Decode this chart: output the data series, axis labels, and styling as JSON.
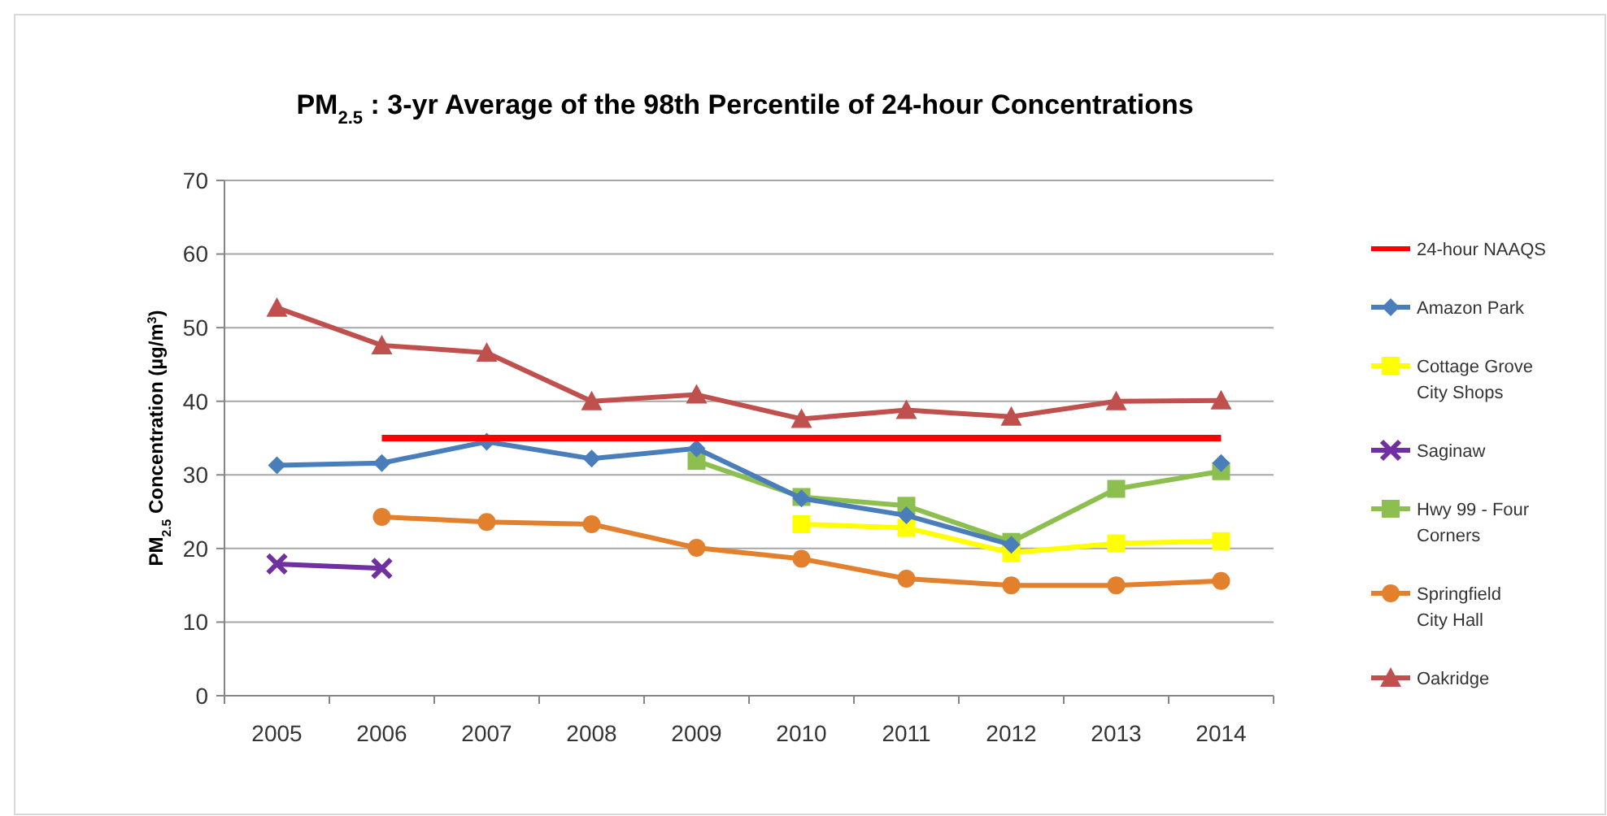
{
  "chart_data": {
    "type": "line",
    "title": "PM$_{2.5}$ : 3-yr Average of the 98th Percentile of 24-hour Concentrations",
    "ylabel": "PM$_{2.5}$ Concentration (µg/m$^{3}$)",
    "categories": [
      "2005",
      "2006",
      "2007",
      "2008",
      "2009",
      "2010",
      "2011",
      "2012",
      "2013",
      "2014"
    ],
    "ylim": [
      0,
      70
    ],
    "yticks": [
      0,
      10,
      20,
      30,
      40,
      50,
      60,
      70
    ],
    "grid": "y",
    "legend": "right",
    "series": [
      {
        "name": "24-hour NAAQS",
        "color": "#ff0000",
        "marker": "none",
        "values": [
          null,
          35,
          35,
          35,
          35,
          35,
          35,
          35,
          35,
          35
        ]
      },
      {
        "name": "Amazon Park",
        "color": "#4a7ebb",
        "marker": "diamond",
        "values": [
          31.3,
          31.6,
          34.5,
          32.2,
          33.6,
          26.8,
          24.5,
          20.5,
          null,
          31.6
        ]
      },
      {
        "name": "Cottage Grove City Shops",
        "color": "#ffff00",
        "marker": "square",
        "values": [
          null,
          null,
          null,
          null,
          null,
          23.3,
          22.8,
          19.4,
          20.7,
          21
        ]
      },
      {
        "name": "Saginaw",
        "color": "#7030a0",
        "marker": "cross",
        "values": [
          17.9,
          17.3,
          null,
          null,
          null,
          null,
          null,
          null,
          null,
          null
        ]
      },
      {
        "name": "Hwy 99 - Four Corners",
        "color": "#8cbf4f",
        "marker": "square",
        "values": [
          null,
          null,
          null,
          null,
          31.9,
          27,
          25.8,
          20.9,
          28.1,
          30.5
        ]
      },
      {
        "name": "Springfield City Hall",
        "color": "#e2802e",
        "marker": "circle",
        "values": [
          null,
          24.3,
          23.6,
          23.3,
          20.1,
          18.6,
          15.9,
          15,
          15,
          15.6
        ]
      },
      {
        "name": "Oakridge",
        "color": "#c0504d",
        "marker": "triangle",
        "values": [
          52.7,
          47.6,
          46.6,
          40,
          40.9,
          37.6,
          38.8,
          37.9,
          40,
          40.1
        ]
      }
    ]
  }
}
